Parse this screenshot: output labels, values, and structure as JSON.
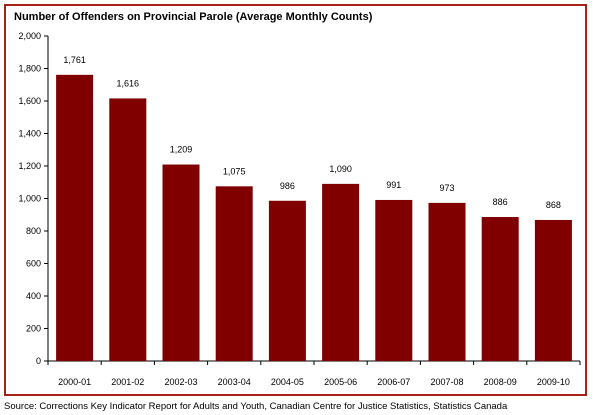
{
  "chart_data": {
    "type": "bar",
    "title": "Number of Offenders on Provincial Parole (Average Monthly Counts)",
    "xlabel": "",
    "ylabel": "",
    "ylim": [
      0,
      2000
    ],
    "yticks": [
      0,
      200,
      400,
      600,
      800,
      1000,
      1200,
      1400,
      1600,
      1800,
      2000
    ],
    "ytick_labels": [
      "0",
      "200",
      "400",
      "600",
      "800",
      "1,000",
      "1,200",
      "1,400",
      "1,600",
      "1,800",
      "2,000"
    ],
    "categories": [
      "2000-01",
      "2001-02",
      "2002-03",
      "2003-04",
      "2004-05",
      "2005-06",
      "2006-07",
      "2007-08",
      "2008-09",
      "2009-10"
    ],
    "values": [
      1761,
      1616,
      1209,
      1075,
      986,
      1090,
      991,
      973,
      886,
      868
    ],
    "value_labels": [
      "1,761",
      "1,616",
      "1,209",
      "1,075",
      "986",
      "1,090",
      "991",
      "973",
      "886",
      "868"
    ],
    "bar_color": "#800000",
    "frame_color": "#a8201a",
    "grid": false
  },
  "source": "Source: Corrections Key Indicator Report for Adults and Youth, Canadian Centre for Justice Statistics, Statistics Canada"
}
